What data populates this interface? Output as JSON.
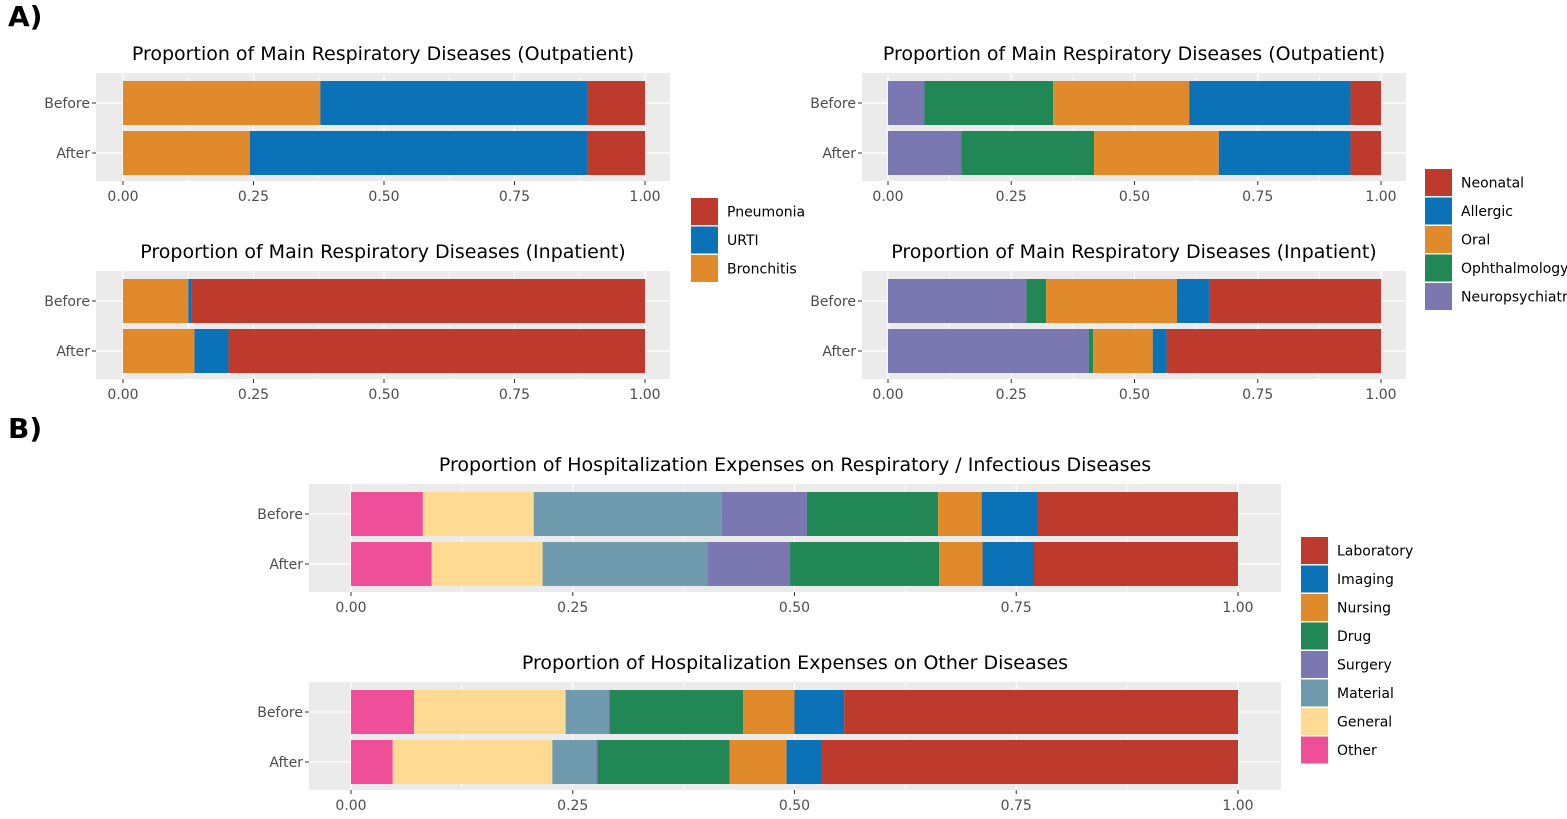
{
  "panels": [
    {
      "label": "A)"
    },
    {
      "label": "B)"
    }
  ],
  "colors": {
    "Pneumonia": "#BE3A2D",
    "URTI": "#0B72B8",
    "Bronchitis": "#E18A2B",
    "Neonatal": "#BE3A2D",
    "Allergic": "#0B72B8",
    "Oral": "#E18A2B",
    "Ophthalmology": "#218754",
    "Neuropsychiatric": "#7A77B1",
    "Laboratory": "#BE3A2D",
    "Imaging": "#0B72B8",
    "Nursing": "#E18A2B",
    "Drug": "#218754",
    "Surgery": "#7A77B1",
    "Material": "#6F9AAD",
    "General": "#FEDA92",
    "Other": "#EE4F98",
    "panel_background": "#EBEBEB",
    "grid": "#FFFFFF"
  },
  "legends": [
    {
      "entries": [
        "Pneumonia",
        "URTI",
        "Bronchitis"
      ]
    },
    {
      "entries": [
        "Neonatal",
        "Allergic",
        "Oral",
        "Ophthalmology",
        "Neuropsychiatric"
      ]
    },
    {
      "entries": [
        "Laboratory",
        "Imaging",
        "Nursing",
        "Drug",
        "Surgery",
        "Material",
        "General",
        "Other"
      ]
    }
  ],
  "chart_data": [
    {
      "type": "bar",
      "orientation": "horizontal",
      "stacked": true,
      "title": "Proportion of Main Respiratory Diseases (Outpatient)",
      "categories": [
        "Before",
        "After"
      ],
      "xlim": [
        0,
        1
      ],
      "xticks": [
        "0.00",
        "0.25",
        "0.50",
        "0.75",
        "1.00"
      ],
      "series": [
        {
          "name": "Bronchitis",
          "values": [
            0.378,
            0.243
          ]
        },
        {
          "name": "URTI",
          "values": [
            0.512,
            0.647
          ]
        },
        {
          "name": "Pneumonia",
          "values": [
            0.11,
            0.11
          ]
        }
      ]
    },
    {
      "type": "bar",
      "orientation": "horizontal",
      "stacked": true,
      "title": "Proportion of Main Respiratory Diseases (Inpatient)",
      "categories": [
        "Before",
        "After"
      ],
      "xlim": [
        0,
        1
      ],
      "xticks": [
        "0.00",
        "0.25",
        "0.50",
        "0.75",
        "1.00"
      ],
      "series": [
        {
          "name": "Bronchitis",
          "values": [
            0.125,
            0.137
          ]
        },
        {
          "name": "URTI",
          "values": [
            0.007,
            0.065
          ]
        },
        {
          "name": "Pneumonia",
          "values": [
            0.868,
            0.798
          ]
        }
      ]
    },
    {
      "type": "bar",
      "orientation": "horizontal",
      "stacked": true,
      "title": "Proportion of Main Respiratory Diseases (Outpatient)",
      "categories": [
        "Before",
        "After"
      ],
      "xlim": [
        0,
        1
      ],
      "xticks": [
        "0.00",
        "0.25",
        "0.50",
        "0.75",
        "1.00"
      ],
      "series": [
        {
          "name": "Neuropsychiatric",
          "values": [
            0.074,
            0.149
          ]
        },
        {
          "name": "Ophthalmology",
          "values": [
            0.261,
            0.269
          ]
        },
        {
          "name": "Oral",
          "values": [
            0.276,
            0.253
          ]
        },
        {
          "name": "Allergic",
          "values": [
            0.327,
            0.267
          ]
        },
        {
          "name": "Neonatal",
          "values": [
            0.062,
            0.062
          ]
        }
      ]
    },
    {
      "type": "bar",
      "orientation": "horizontal",
      "stacked": true,
      "title": "Proportion of Main Respiratory Diseases (Inpatient)",
      "categories": [
        "Before",
        "After"
      ],
      "xlim": [
        0,
        1
      ],
      "xticks": [
        "0.00",
        "0.25",
        "0.50",
        "0.75",
        "1.00"
      ],
      "series": [
        {
          "name": "Neuropsychiatric",
          "values": [
            0.281,
            0.407
          ]
        },
        {
          "name": "Ophthalmology",
          "values": [
            0.04,
            0.009
          ]
        },
        {
          "name": "Oral",
          "values": [
            0.265,
            0.121
          ]
        },
        {
          "name": "Allergic",
          "values": [
            0.065,
            0.028
          ]
        },
        {
          "name": "Neonatal",
          "values": [
            0.349,
            0.435
          ]
        }
      ]
    },
    {
      "type": "bar",
      "orientation": "horizontal",
      "stacked": true,
      "title": "Proportion of Hospitalization Expenses on Respiratory / Infectious Diseases",
      "categories": [
        "Before",
        "After"
      ],
      "xlim": [
        0,
        1
      ],
      "xticks": [
        "0.00",
        "0.25",
        "0.50",
        "0.75",
        "1.00"
      ],
      "series": [
        {
          "name": "Other",
          "values": [
            0.081,
            0.091
          ]
        },
        {
          "name": "General",
          "values": [
            0.125,
            0.125
          ]
        },
        {
          "name": "Material",
          "values": [
            0.212,
            0.186
          ]
        },
        {
          "name": "Surgery",
          "values": [
            0.096,
            0.093
          ]
        },
        {
          "name": "Drug",
          "values": [
            0.148,
            0.168
          ]
        },
        {
          "name": "Nursing",
          "values": [
            0.049,
            0.049
          ]
        },
        {
          "name": "Imaging",
          "values": [
            0.063,
            0.058
          ]
        },
        {
          "name": "Laboratory",
          "values": [
            0.226,
            0.23
          ]
        }
      ]
    },
    {
      "type": "bar",
      "orientation": "horizontal",
      "stacked": true,
      "title": "Proportion of Hospitalization Expenses on Other Diseases",
      "categories": [
        "Before",
        "After"
      ],
      "xlim": [
        0,
        1
      ],
      "xticks": [
        "0.00",
        "0.25",
        "0.50",
        "0.75",
        "1.00"
      ],
      "series": [
        {
          "name": "Other",
          "values": [
            0.071,
            0.047
          ]
        },
        {
          "name": "General",
          "values": [
            0.171,
            0.18
          ]
        },
        {
          "name": "Material",
          "values": [
            0.048,
            0.049
          ]
        },
        {
          "name": "Surgery",
          "values": [
            0.002,
            0.002
          ]
        },
        {
          "name": "Drug",
          "values": [
            0.15,
            0.149
          ]
        },
        {
          "name": "Nursing",
          "values": [
            0.058,
            0.064
          ]
        },
        {
          "name": "Imaging",
          "values": [
            0.056,
            0.04
          ]
        },
        {
          "name": "Laboratory",
          "values": [
            0.444,
            0.469
          ]
        }
      ]
    }
  ]
}
